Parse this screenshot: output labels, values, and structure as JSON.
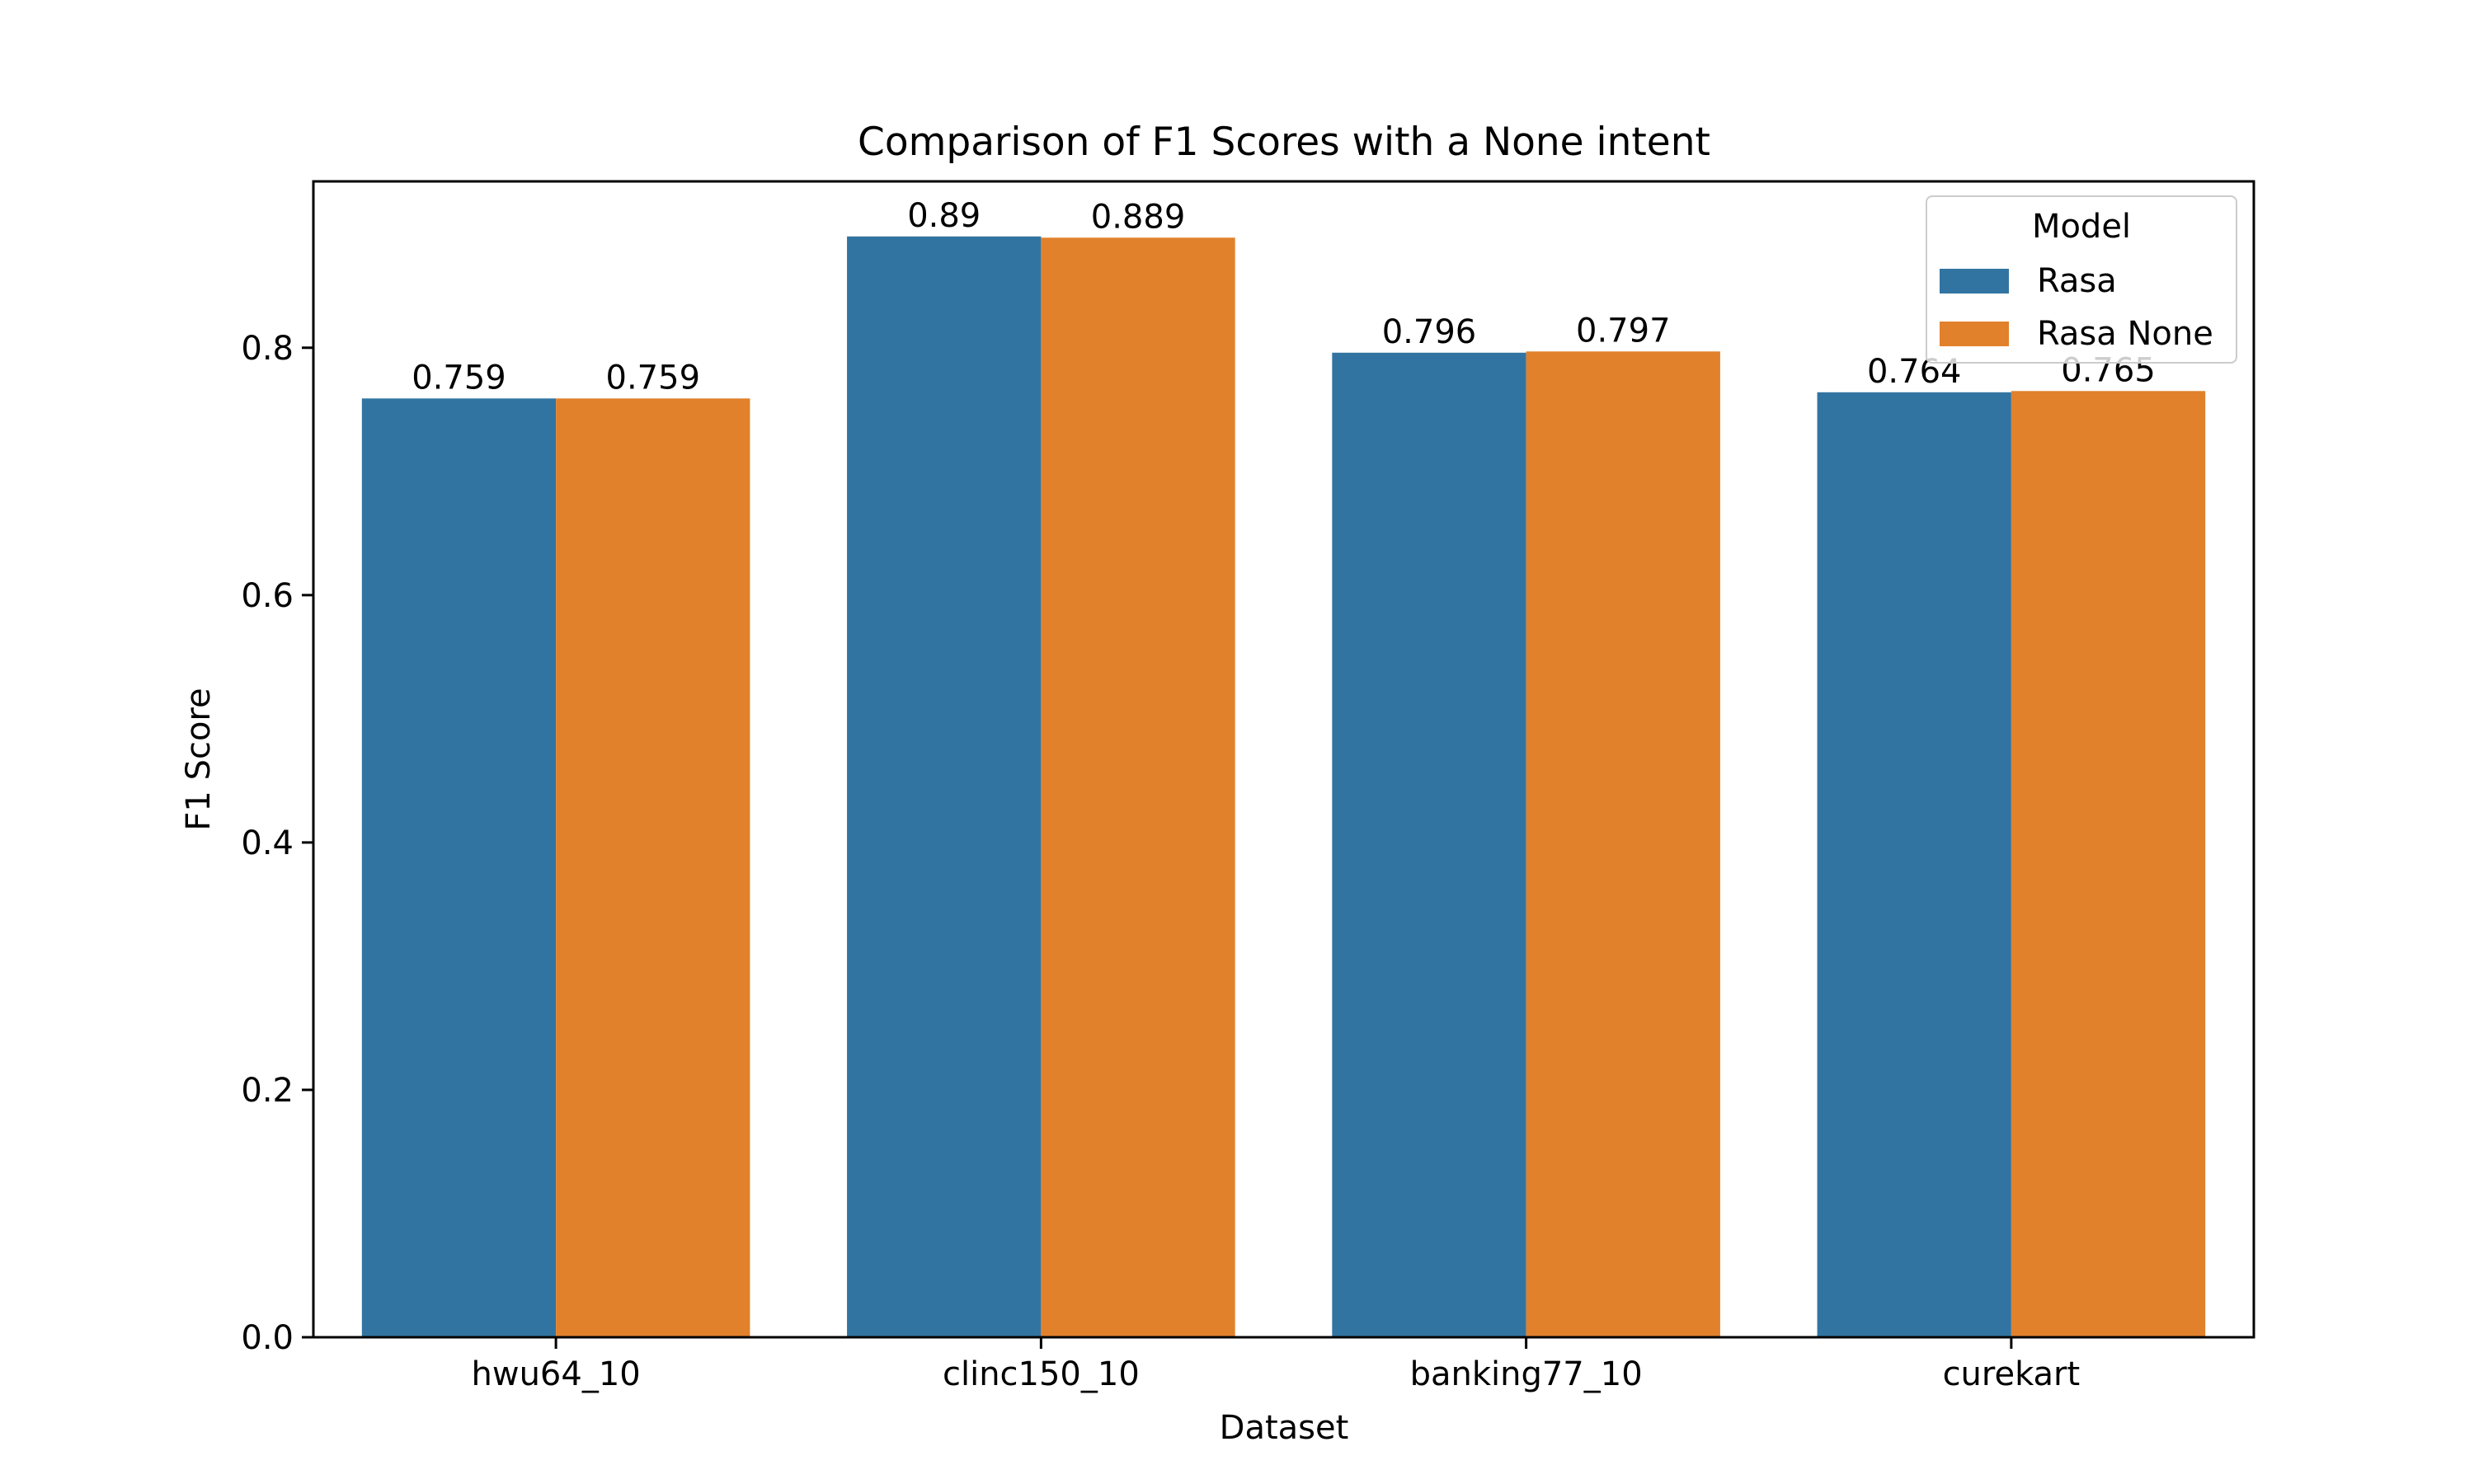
{
  "chart_data": {
    "type": "bar",
    "title": "Comparison of F1 Scores with a None intent",
    "xlabel": "Dataset",
    "ylabel": "F1 Score",
    "categories": [
      "hwu64_10",
      "clinc150_10",
      "banking77_10",
      "curekart"
    ],
    "series": [
      {
        "name": "Rasa",
        "color": "#3274a1",
        "values": [
          0.759,
          0.89,
          0.796,
          0.764
        ],
        "labels": [
          "0.759",
          "0.89",
          "0.796",
          "0.764"
        ]
      },
      {
        "name": "Rasa None",
        "color": "#e1812c",
        "values": [
          0.759,
          0.889,
          0.797,
          0.765
        ],
        "labels": [
          "0.759",
          "0.889",
          "0.797",
          "0.765"
        ]
      }
    ],
    "ylim": [
      0,
      0.9345
    ],
    "yticks": [
      0.0,
      0.2,
      0.4,
      0.6,
      0.8
    ],
    "ytick_labels": [
      "0.0",
      "0.2",
      "0.4",
      "0.6",
      "0.8"
    ],
    "legend": {
      "title": "Model",
      "position": "top-right"
    },
    "grid": false
  }
}
